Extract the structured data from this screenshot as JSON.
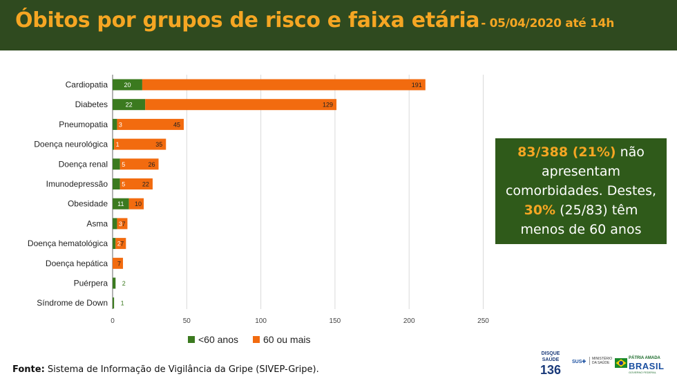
{
  "header": {
    "title": "Óbitos por grupos de risco e faixa etária",
    "subtitle": "- 05/04/2020 até 14h"
  },
  "callout": {
    "part1": "83/388 (21%)",
    "part2": " não apresentam comorbidades. Destes, ",
    "part3": "30%",
    "part4": " (25/83) têm menos de 60 anos"
  },
  "footer": {
    "source_label": "Fonte:",
    "source_text": " Sistema de Informação de Vigilância da Gripe (SIVEP-Gripe)."
  },
  "logos": {
    "disque_line1": "DISQUE",
    "disque_line2": "SAÚDE",
    "disque_number": "136",
    "sus": "SUS",
    "ministerio": "MINISTÉRIO DA SAÚDE",
    "brasil_top": "PÁTRIA AMADA",
    "brasil_main": "BRASIL",
    "brasil_bottom": "GOVERNO FEDERAL"
  },
  "colors": {
    "under60": "#3b7a1f",
    "over60": "#f26b0f",
    "header_bg": "#2f4a1f",
    "accent": "#f5a623"
  },
  "chart_data": {
    "type": "bar",
    "orientation": "horizontal",
    "stacked": true,
    "categories": [
      "Cardiopatia",
      "Diabetes",
      "Pneumopatia",
      "Doença neurológica",
      "Doença renal",
      "Imunodepressão",
      "Obesidade",
      "Asma",
      "Doença hematológica",
      "Doença hepática",
      "Puérpera",
      "Síndrome de Down"
    ],
    "series": [
      {
        "name": "<60 anos",
        "color": "#3b7a1f",
        "values": [
          20,
          22,
          3,
          1,
          5,
          5,
          11,
          3,
          2,
          0,
          2,
          1
        ],
        "labels": [
          "20",
          "22",
          "3",
          "1",
          "5",
          "5",
          "11",
          "3",
          "2",
          "",
          "2",
          "1"
        ]
      },
      {
        "name": "60 ou mais",
        "color": "#f26b0f",
        "values": [
          191,
          129,
          45,
          35,
          26,
          22,
          10,
          7,
          7,
          7,
          0,
          0
        ],
        "labels": [
          "191",
          "129",
          "45",
          "35",
          "26",
          "22",
          "10",
          "7",
          "7",
          "7",
          "",
          ""
        ]
      }
    ],
    "xlim": [
      0,
      250
    ],
    "xticks": [
      "0",
      "50",
      "100",
      "150",
      "200",
      "250"
    ],
    "grid": true,
    "legend_position": "bottom"
  }
}
